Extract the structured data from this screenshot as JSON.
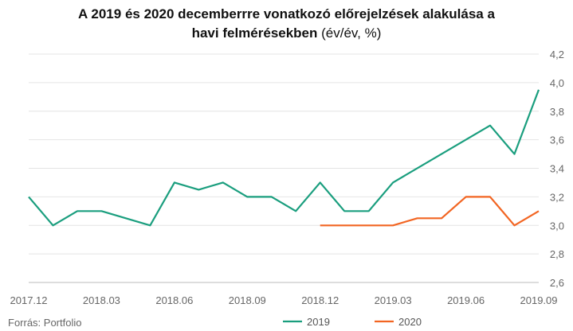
{
  "chart_data": {
    "type": "line",
    "title_line1": "A 2019 és 2020 decemberrre vonatkozó előrejelzések alakulása a",
    "title_line2": "havi felmérésekben",
    "title_unit": "(év/év, %)",
    "source": "Forrás: Portfolio",
    "x_labels": [
      "2017.12",
      "2018.03",
      "2018.06",
      "2018.09",
      "2018.12",
      "2019.03",
      "2019.06",
      "2019.09"
    ],
    "y_ticks": [
      "2,6",
      "2,8",
      "3,0",
      "3,2",
      "3,4",
      "3,6",
      "3,8",
      "4,0",
      "4,2"
    ],
    "ylim": [
      2.6,
      4.2
    ],
    "x_months": [
      "2017.12",
      "2018.01",
      "2018.02",
      "2018.03",
      "2018.04",
      "2018.05",
      "2018.06",
      "2018.07",
      "2018.08",
      "2018.09",
      "2018.10",
      "2018.11",
      "2018.12",
      "2019.01",
      "2019.02",
      "2019.03",
      "2019.04",
      "2019.05",
      "2019.06",
      "2019.07",
      "2019.08",
      "2019.09"
    ],
    "series": [
      {
        "name": "2019",
        "color": "#1a9e7e",
        "values": [
          3.2,
          3.0,
          3.1,
          3.1,
          null,
          3.0,
          3.3,
          3.25,
          3.3,
          3.2,
          3.2,
          3.1,
          3.3,
          3.1,
          3.1,
          3.3,
          null,
          null,
          null,
          3.7,
          3.5,
          3.95
        ]
      },
      {
        "name": "2020",
        "color": "#f26522",
        "values": [
          null,
          null,
          null,
          null,
          null,
          null,
          null,
          null,
          null,
          null,
          null,
          null,
          3.0,
          3.0,
          3.0,
          3.0,
          3.05,
          3.05,
          3.2,
          3.2,
          3.0,
          3.1
        ]
      }
    ],
    "grid": true,
    "legend_position": "bottom"
  }
}
